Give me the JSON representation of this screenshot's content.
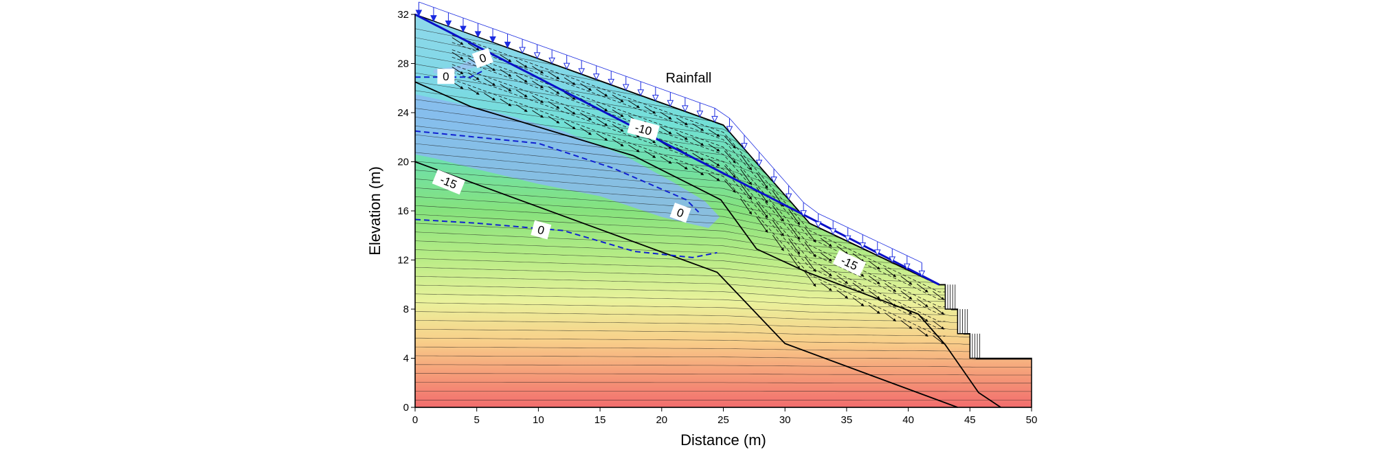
{
  "chart_data": {
    "type": "contour",
    "xlabel": "Distance (m)",
    "ylabel": "Elevation (m)",
    "xlim": [
      0,
      50
    ],
    "ylim": [
      0,
      32
    ],
    "xticks": [
      0,
      5,
      10,
      15,
      20,
      25,
      30,
      35,
      40,
      45,
      50
    ],
    "yticks": [
      0,
      4,
      8,
      12,
      16,
      20,
      24,
      28,
      32
    ],
    "annotation": "Rainfall",
    "contour_labels": [
      {
        "text": "0",
        "x": 2.5,
        "y": 26.9,
        "angle": 0
      },
      {
        "text": "0",
        "x": 5.5,
        "y": 28.4,
        "angle": -20
      },
      {
        "text": "-10",
        "x": 18.5,
        "y": 22.6,
        "angle": 15
      },
      {
        "text": "-15",
        "x": 2.7,
        "y": 18.3,
        "angle": 22
      },
      {
        "text": "0",
        "x": 21.5,
        "y": 15.8,
        "angle": 20
      },
      {
        "text": "0",
        "x": 10.2,
        "y": 14.4,
        "angle": 15
      },
      {
        "text": "-15",
        "x": 35.2,
        "y": 11.7,
        "angle": 25
      }
    ],
    "ground_surface": [
      [
        0,
        32
      ],
      [
        25,
        23
      ],
      [
        32,
        15
      ],
      [
        42.5,
        10
      ],
      [
        43,
        10
      ],
      [
        43,
        8
      ],
      [
        44,
        8
      ],
      [
        44,
        6
      ],
      [
        45,
        6
      ],
      [
        45,
        4
      ],
      [
        50,
        4
      ],
      [
        50,
        0
      ],
      [
        0,
        0
      ]
    ],
    "layer_boundaries": [
      [
        [
          0,
          26.5
        ],
        [
          4.5,
          24.5
        ],
        [
          17.7,
          20.5
        ],
        [
          24.8,
          16.9
        ],
        [
          27.7,
          12.9
        ],
        [
          31.8,
          11.0
        ],
        [
          40.8,
          7.6
        ],
        [
          43.0,
          5.1
        ],
        [
          45.7,
          1.2
        ],
        [
          47.5,
          0
        ]
      ],
      [
        [
          0,
          20
        ],
        [
          24.5,
          11
        ],
        [
          30.0,
          5.2
        ],
        [
          44.0,
          0
        ]
      ]
    ],
    "water_table_lines": [
      [
        [
          0,
          26.9
        ],
        [
          4.5,
          26.9
        ],
        [
          5.5,
          27.4
        ]
      ],
      [
        [
          0,
          22.5
        ],
        [
          10,
          21.5
        ],
        [
          16,
          19.5
        ],
        [
          22,
          16.9
        ],
        [
          23,
          15.9
        ]
      ],
      [
        [
          0,
          15.3
        ],
        [
          5,
          15.0
        ],
        [
          12,
          14.4
        ],
        [
          17.8,
          12.7
        ],
        [
          22.5,
          12.2
        ],
        [
          24.5,
          12.6
        ]
      ]
    ],
    "rainfall_boundary": {
      "from": [
        0,
        32
      ],
      "to": [
        42.5,
        10
      ]
    }
  }
}
